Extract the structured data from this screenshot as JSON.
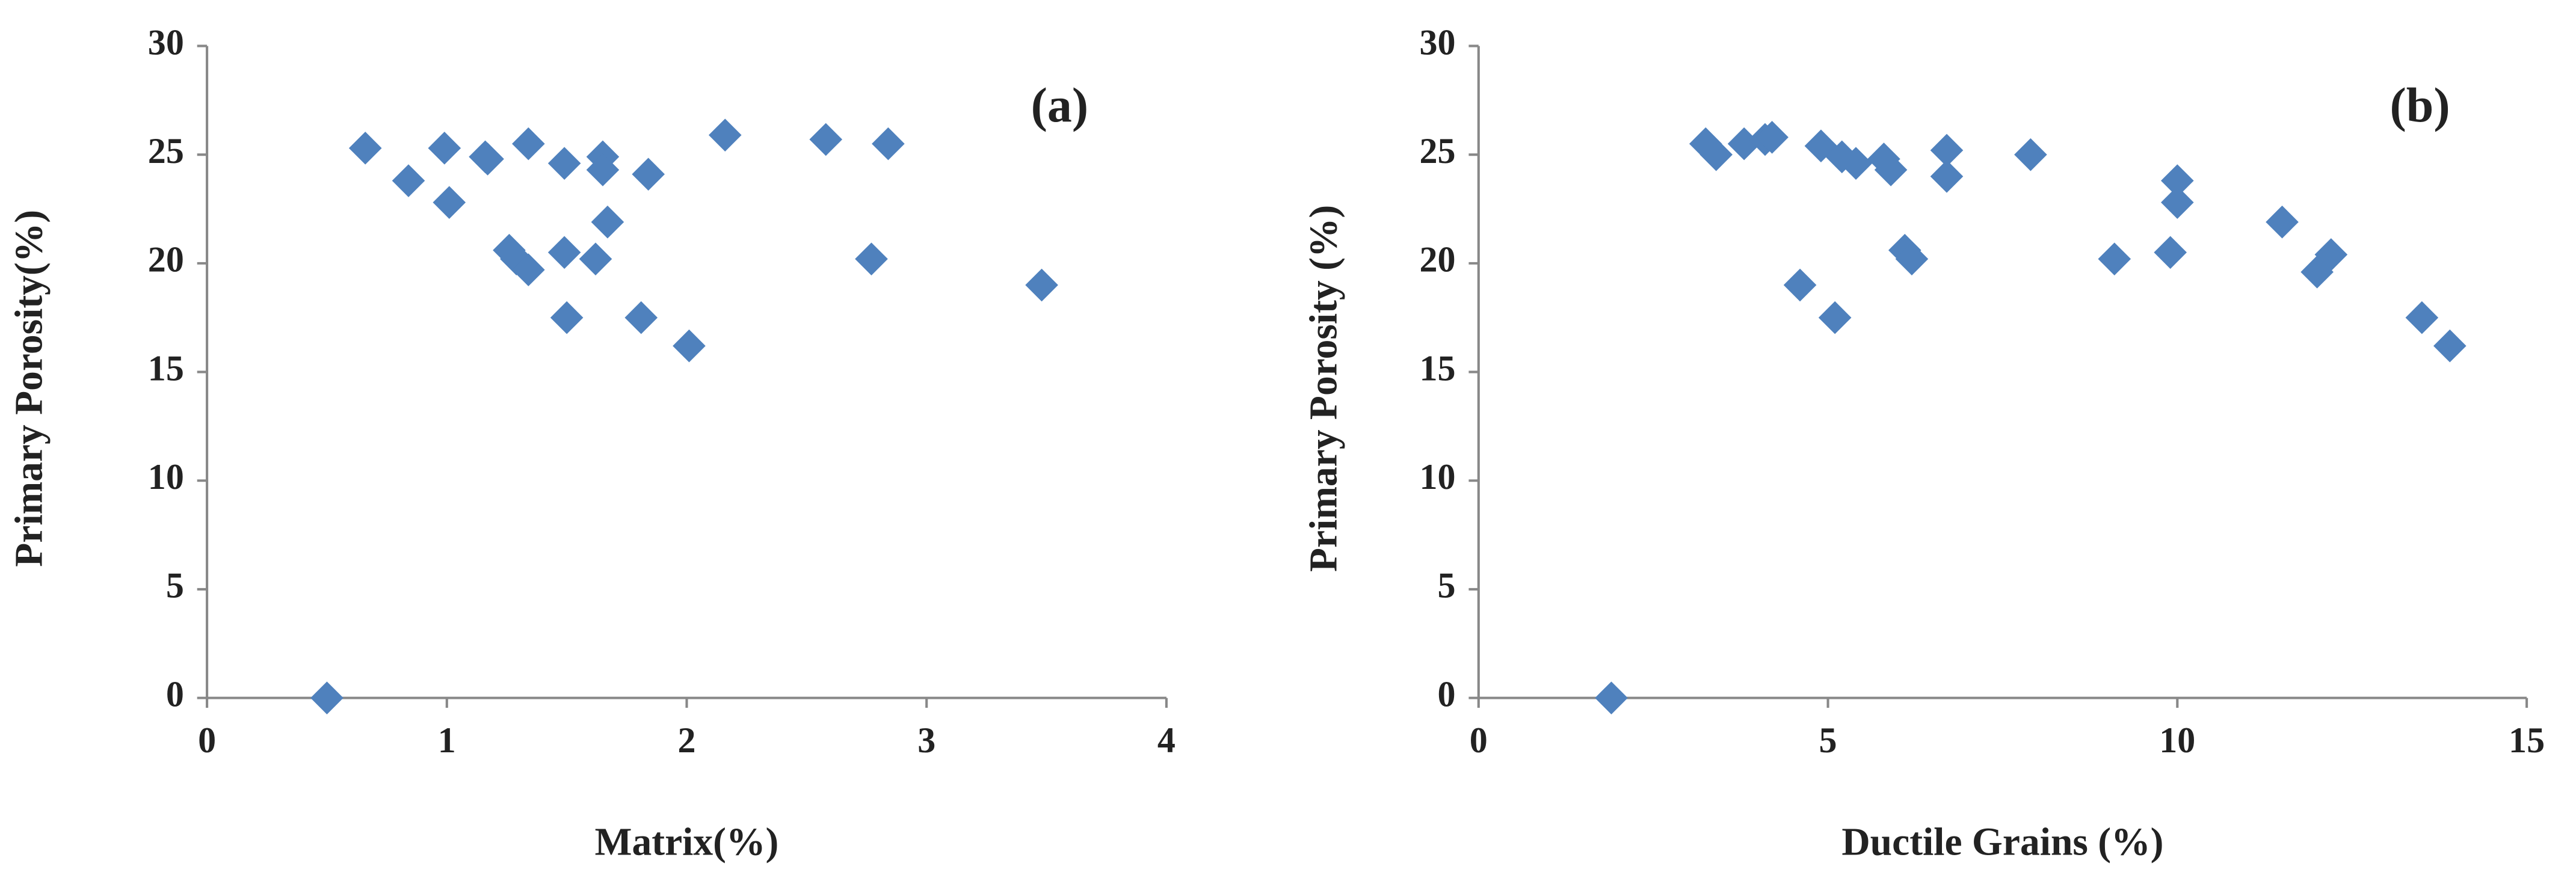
{
  "chart_data": [
    {
      "type": "scatter",
      "annotation": "(a)",
      "xlabel": "Matrix(%)",
      "ylabel": "Primary  Porosity(%)",
      "color": "#4f81bd",
      "x": [
        0.5,
        0.66,
        0.84,
        0.99,
        1.01,
        1.16,
        1.17,
        1.26,
        1.29,
        1.34,
        1.34,
        1.49,
        1.49,
        1.5,
        1.62,
        1.65,
        1.65,
        1.67,
        1.81,
        1.84,
        2.01,
        2.16,
        2.58,
        2.77,
        2.84,
        3.48
      ],
      "values": [
        0,
        25.3,
        23.8,
        25.3,
        22.8,
        24.9,
        24.8,
        20.6,
        20.2,
        19.7,
        25.5,
        24.6,
        20.5,
        17.5,
        20.2,
        24.9,
        24.3,
        21.9,
        17.5,
        24.1,
        16.2,
        25.9,
        25.7,
        20.2,
        25.5,
        19.0
      ],
      "xlim": [
        0,
        4
      ],
      "xticks": [
        0,
        1,
        2,
        3,
        4
      ],
      "ylim": [
        0,
        30
      ],
      "yticks": [
        0,
        5,
        10,
        15,
        20,
        25,
        30
      ]
    },
    {
      "type": "scatter",
      "annotation": "(b)",
      "xlabel": "Ductile Grains (%)",
      "ylabel": "Primary  Porosity (%)",
      "color": "#4f81bd",
      "x": [
        1.9,
        3.25,
        3.4,
        3.8,
        4.1,
        4.2,
        4.9,
        5.2,
        5.4,
        5.8,
        5.9,
        6.7,
        6.7,
        6.1,
        6.2,
        4.6,
        5.1,
        7.9,
        9.1,
        9.9,
        10.0,
        10.0,
        11.5,
        12.0,
        12.2,
        13.5,
        13.9
      ],
      "values": [
        0,
        25.5,
        25.0,
        25.5,
        25.7,
        25.8,
        25.4,
        24.9,
        24.6,
        24.8,
        24.3,
        25.2,
        24.0,
        20.6,
        20.2,
        19.0,
        17.5,
        25.0,
        20.2,
        20.5,
        23.8,
        22.8,
        21.9,
        19.6,
        20.4,
        17.5,
        16.2
      ],
      "xlim": [
        0,
        15
      ],
      "xticks": [
        0,
        5,
        10,
        15
      ],
      "ylim": [
        0,
        30
      ],
      "yticks": [
        0,
        5,
        10,
        15,
        20,
        25,
        30
      ]
    }
  ]
}
